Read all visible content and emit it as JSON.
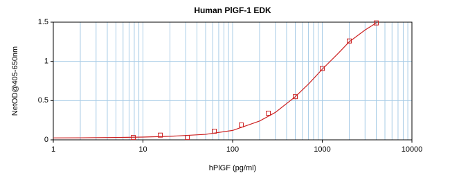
{
  "chart_data": {
    "type": "scatter",
    "title": "Human PlGF-1 EDK",
    "x_label": "hPlGF (pg/ml)",
    "y_label": "NetOD@405-650nm",
    "log_x": true,
    "grid": true,
    "grid_color": "#a8cce6",
    "xlim": [
      1,
      10000
    ],
    "xticks": [
      1,
      10,
      100,
      1000,
      10000
    ],
    "xminorticks": [
      2,
      3,
      4,
      5,
      6,
      7,
      8,
      9,
      20,
      30,
      40,
      50,
      60,
      70,
      80,
      90,
      200,
      300,
      400,
      500,
      600,
      700,
      800,
      900,
      2000,
      3000,
      4000,
      5000,
      6000,
      7000,
      8000,
      9000
    ],
    "ylim": [
      0,
      1.5
    ],
    "yticks": [
      0,
      0.5,
      1,
      1.5
    ],
    "series": [
      {
        "type": "scatter",
        "marker": "square",
        "color": "#cc2222",
        "x": [
          7.8,
          15.6,
          31.25,
          62.5,
          125,
          250,
          500,
          1000,
          2000,
          4000
        ],
        "values": [
          0.03,
          0.06,
          0.03,
          0.11,
          0.19,
          0.34,
          0.55,
          0.91,
          1.26,
          1.49
        ]
      },
      {
        "type": "line",
        "color": "#cc2222",
        "x": [
          1,
          2,
          5,
          10,
          20,
          50,
          100,
          200,
          300,
          500,
          700,
          1000,
          1500,
          2000,
          3000,
          4000
        ],
        "values": [
          0.025,
          0.026,
          0.03,
          0.035,
          0.045,
          0.07,
          0.12,
          0.24,
          0.35,
          0.55,
          0.71,
          0.9,
          1.1,
          1.25,
          1.4,
          1.49
        ]
      }
    ]
  }
}
